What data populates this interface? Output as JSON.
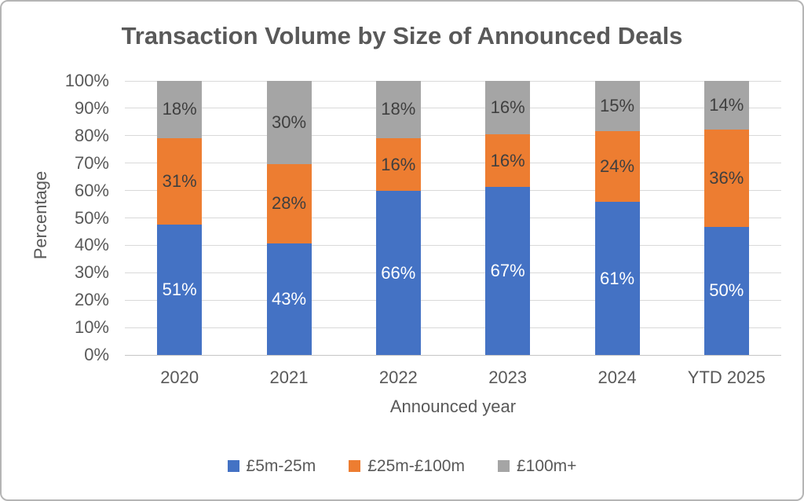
{
  "chart_data": {
    "type": "bar",
    "stacked": true,
    "percent_stacked": true,
    "title": "Transaction Volume by Size of Announced Deals",
    "xlabel": "Announced year",
    "ylabel": "Percentage",
    "categories": [
      "2020",
      "2021",
      "2022",
      "2023",
      "2024",
      "YTD 2025"
    ],
    "series": [
      {
        "name": "£5m-25m",
        "color": "#4472C4",
        "label_color": "#ffffff",
        "values": [
          51,
          43,
          66,
          67,
          61,
          50
        ]
      },
      {
        "name": "£25m-£100m",
        "color": "#ED7D31",
        "label_color": "#3f3f3f",
        "values": [
          31,
          28,
          16,
          16,
          24,
          36
        ]
      },
      {
        "name": "£100m+",
        "color": "#A5A5A5",
        "label_color": "#3f3f3f",
        "values": [
          18,
          30,
          18,
          16,
          15,
          14
        ]
      }
    ],
    "data_label_format": "percent",
    "y_ticks": [
      "0%",
      "10%",
      "20%",
      "30%",
      "40%",
      "50%",
      "60%",
      "70%",
      "80%",
      "90%",
      "100%"
    ],
    "ylim": [
      0,
      100
    ],
    "grid": true,
    "gridline_color": "#d9d9d9",
    "legend_position": "bottom",
    "title_color": "#595959",
    "axis_text_color": "#595959"
  }
}
